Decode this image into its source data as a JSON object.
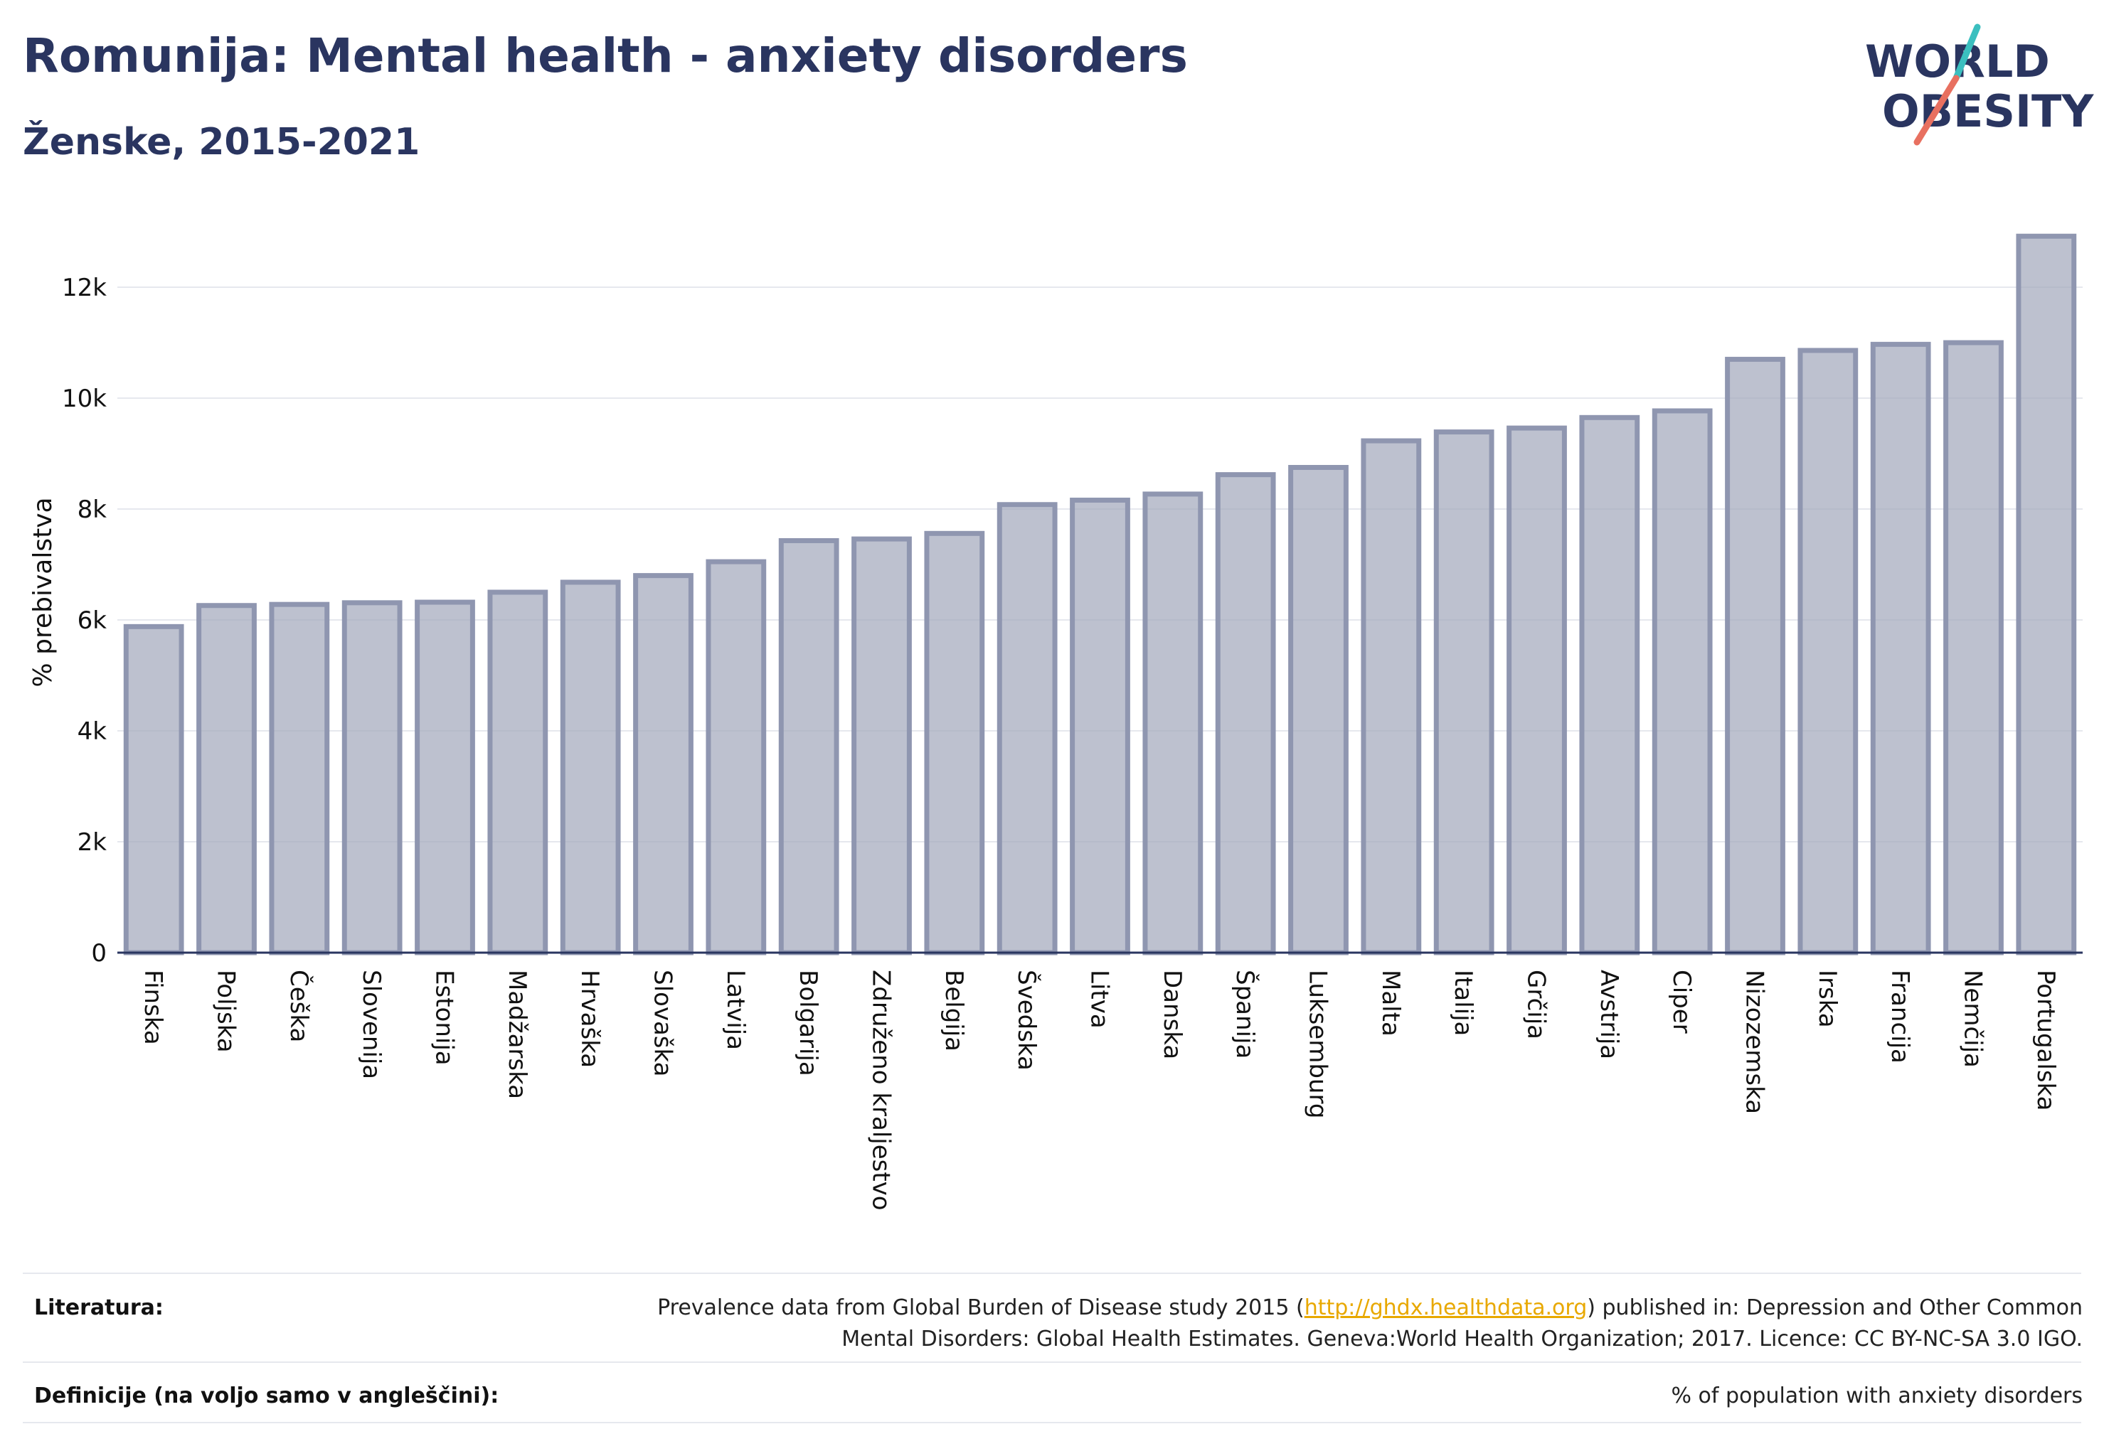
{
  "header": {
    "title": "Romunija: Mental health - anxiety disorders",
    "subtitle": "Ženske, 2015-2021"
  },
  "logo": {
    "line1": "WORLD",
    "line2": "OBESITY"
  },
  "chart_data": {
    "type": "bar",
    "title": "Romunija: Mental health - anxiety disorders",
    "subtitle": "Ženske, 2015-2021",
    "ylabel": "% prebivalstva",
    "xlabel": "",
    "ylim": [
      0,
      13000
    ],
    "yticks": [
      0,
      2000,
      4000,
      6000,
      8000,
      10000,
      12000
    ],
    "ytick_labels": [
      "0",
      "2k",
      "4k",
      "6k",
      "8k",
      "10k",
      "12k"
    ],
    "grid": true,
    "bar_color": "#a4a9bd",
    "bar_edge_color": "#8f96b0",
    "categories": [
      "Finska",
      "Poljska",
      "Češka",
      "Slovenija",
      "Estonija",
      "Madžarska",
      "Hrvaška",
      "Slovaška",
      "Latvija",
      "Bolgarija",
      "Združeno kraljestvo",
      "Belgija",
      "Švedska",
      "Litva",
      "Danska",
      "Španija",
      "Luksemburg",
      "Malta",
      "Italija",
      "Grčija",
      "Avstrija",
      "Ciper",
      "Nizozemska",
      "Irska",
      "Francija",
      "Nemčija",
      "Portugalska"
    ],
    "values": [
      5880,
      6260,
      6280,
      6310,
      6320,
      6500,
      6680,
      6800,
      7050,
      7430,
      7460,
      7560,
      8080,
      8160,
      8270,
      8620,
      8750,
      9230,
      9390,
      9460,
      9650,
      9770,
      10700,
      10860,
      10970,
      11000,
      12920
    ]
  },
  "footer": {
    "literature_label": "Literatura:",
    "literature_pre": "Prevalence data from Global Burden of Disease study 2015 (",
    "literature_link": "http://ghdx.healthdata.org",
    "literature_post": ") published in: Depression and Other Common",
    "literature_line2": "Mental Disorders: Global Health Estimates. Geneva:World Health Organization; 2017. Licence: CC BY-NC-SA 3.0 IGO.",
    "definition_label": "Definicije (na voljo samo v angleščini):",
    "definition_text": "% of population with anxiety disorders"
  },
  "colors": {
    "title": "#2a3560",
    "grid": "#e6e8ee",
    "axis": "#2a3560",
    "link": "#e8a800",
    "logo_teal": "#3bbfbf",
    "logo_coral": "#e87060"
  }
}
